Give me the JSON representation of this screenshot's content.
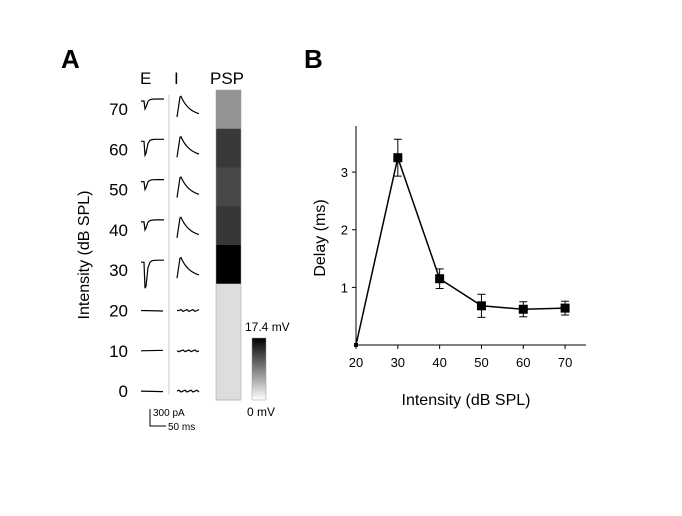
{
  "panel_a": {
    "label": "A",
    "col_e": "E",
    "col_i": "I",
    "col_psp": "PSP",
    "ylabel": "Intensity (dB SPL)",
    "tick_labels": [
      "70",
      "60",
      "50",
      "40",
      "30",
      "20",
      "10",
      "0"
    ],
    "scalebar": {
      "current": "300 pA",
      "time": "50 ms"
    },
    "colorbar": {
      "max_label": "17.4 mV",
      "min_label": "0 mV"
    }
  },
  "panel_b": {
    "label": "B",
    "xlabel": "Intensity (dB SPL)",
    "ylabel": "Delay (ms)"
  },
  "chart_data": [
    {
      "type": "heatmap",
      "rows": [
        70,
        60,
        50,
        40,
        30,
        20,
        10,
        0
      ],
      "row_labels": [
        "70",
        "60",
        "50",
        "40",
        "30",
        "20",
        "10",
        "0"
      ],
      "values_mV": [
        6.5,
        13.2,
        12.1,
        13.4,
        17.4,
        1.0,
        1.0,
        1.0
      ],
      "colorbar_range_mV": [
        0,
        17.4
      ],
      "colormap": "gray-reversed",
      "traces": {
        "E": [
          "response",
          "response",
          "response",
          "response",
          "response",
          "flat",
          "flat",
          "flat"
        ],
        "I": [
          "response",
          "response",
          "response",
          "response",
          "response",
          "flat",
          "flat",
          "flat"
        ]
      }
    },
    {
      "type": "line",
      "x": [
        20,
        30,
        40,
        50,
        60,
        70
      ],
      "y": [
        0.0,
        3.25,
        1.15,
        0.68,
        0.62,
        0.64
      ],
      "yerr": [
        0.0,
        0.32,
        0.17,
        0.2,
        0.13,
        0.12
      ],
      "xlabel": "Intensity (dB SPL)",
      "ylabel": "Delay (ms)",
      "xticks": [
        20,
        30,
        40,
        50,
        60,
        70
      ],
      "yticks": [
        1,
        2,
        3
      ],
      "xlim": [
        20,
        75
      ],
      "ylim": [
        0,
        3.8
      ],
      "marker": "square",
      "color": "#000000",
      "grid": false
    }
  ]
}
